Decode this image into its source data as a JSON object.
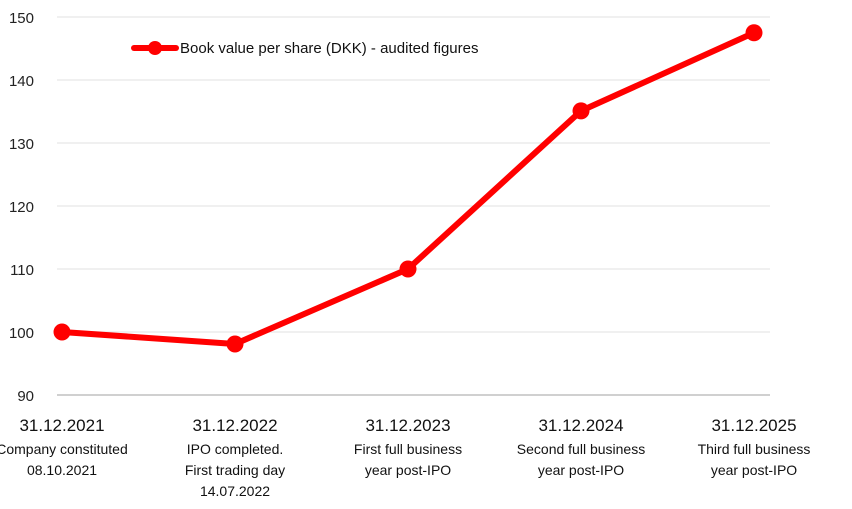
{
  "chart_data": {
    "type": "line",
    "categories": [
      {
        "date": "31.12.2021",
        "note": [
          "Company constituted",
          "08.10.2021"
        ]
      },
      {
        "date": "31.12.2022",
        "note": [
          "IPO completed.",
          "First trading day",
          "14.07.2022"
        ]
      },
      {
        "date": "31.12.2023",
        "note": [
          "First full business",
          "year post-IPO"
        ]
      },
      {
        "date": "31.12.2024",
        "note": [
          "Second full business",
          "year post-IPO"
        ]
      },
      {
        "date": "31.12.2025",
        "note": [
          "Third full business",
          "year post-IPO"
        ]
      }
    ],
    "series": [
      {
        "name": "Book value per share (DKK) - audited figures",
        "values": [
          100,
          98.1,
          110,
          135.1,
          147.5
        ],
        "color": "#ff0000"
      }
    ],
    "yticks": [
      "90",
      "100",
      "110",
      "120",
      "130",
      "140",
      "150"
    ],
    "ylim": [
      90,
      150
    ],
    "grid": true,
    "legend": "top-left"
  }
}
